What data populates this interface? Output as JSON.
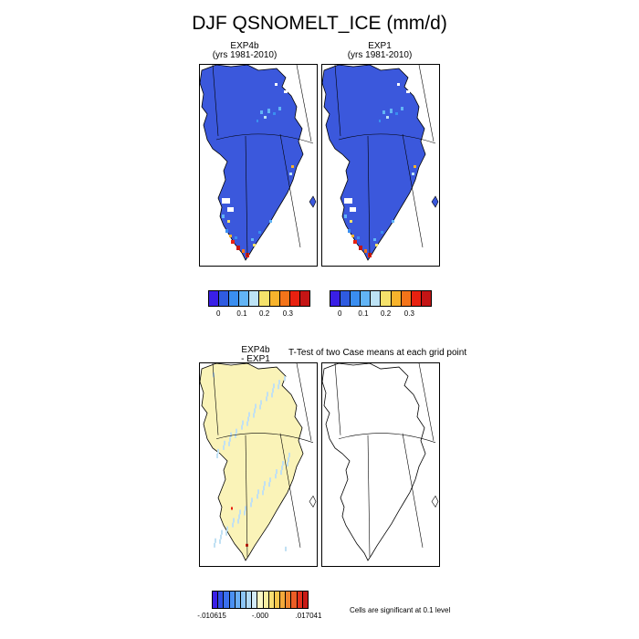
{
  "figure": {
    "title": "DJF QSNOMELT_ICE (mm/d)"
  },
  "panels": {
    "exp4b": {
      "title_line1": "EXP4b",
      "title_line2": "(yrs 1981-2010)"
    },
    "exp1": {
      "title_line1": "EXP1",
      "title_line2": "(yrs 1981-2010)"
    },
    "diff": {
      "title_line1": "EXP4b",
      "title_line2": "- EXP1"
    },
    "ttest": {
      "title": "T-Test of two Case means at each grid point"
    }
  },
  "colorbar_main": {
    "colors": [
      "#3a1fe6",
      "#2f5be0",
      "#3a8ef0",
      "#62b4f5",
      "#bde3f5",
      "#f5e26b",
      "#f7b32c",
      "#f47419",
      "#e92110",
      "#c41515"
    ],
    "ticks": [
      "0",
      "0.1",
      "0.2",
      "0.3"
    ]
  },
  "colorbar_diff": {
    "colors": [
      "#3a1fe6",
      "#2f4fe6",
      "#3a70ee",
      "#4a90f2",
      "#6aaef5",
      "#8cc5f6",
      "#b0d9f6",
      "#d4ebf7",
      "#fbf8c4",
      "#f8eea0",
      "#f7dd72",
      "#f5c64b",
      "#f3a93a",
      "#f0862f",
      "#ec5d25",
      "#e3321c",
      "#c81b16"
    ],
    "ticks": [
      "-.010615",
      "-.000",
      ".017041"
    ]
  },
  "significance_note": "Cells are significant at 0.1 level",
  "map_colors": {
    "ice_main": "#3b58dc",
    "ice_diff": "#faf3b8",
    "diff_specks": "#c0e0f3",
    "coast": "#000000"
  }
}
